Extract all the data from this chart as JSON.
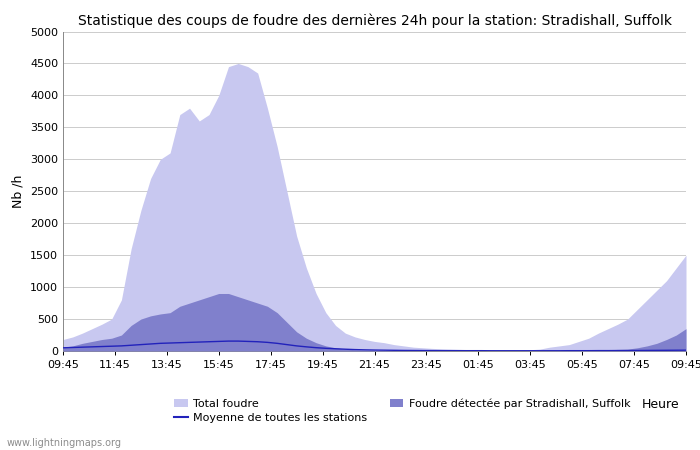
{
  "title": "Statistique des coups de foudre des dernières 24h pour la station: Stradishall, Suffolk",
  "xlabel": "Heure",
  "ylabel": "Nb /h",
  "ylim": [
    0,
    5000
  ],
  "yticks": [
    0,
    500,
    1000,
    1500,
    2000,
    2500,
    3000,
    3500,
    4000,
    4500,
    5000
  ],
  "x_labels": [
    "09:45",
    "11:45",
    "13:45",
    "15:45",
    "17:45",
    "19:45",
    "21:45",
    "23:45",
    "01:45",
    "03:45",
    "05:45",
    "07:45",
    "09:45"
  ],
  "color_total": "#c8c8f0",
  "color_detected": "#8080cc",
  "color_line": "#2222bb",
  "watermark": "www.lightningmaps.org",
  "legend_total": "Total foudre",
  "legend_avg": "Moyenne de toutes les stations",
  "legend_detected": "Foudre détectée par Stradishall, Suffolk",
  "total_foudre": [
    180,
    220,
    280,
    350,
    420,
    500,
    800,
    1600,
    2200,
    2700,
    3000,
    3100,
    3700,
    3800,
    3600,
    3700,
    4000,
    4450,
    4500,
    4450,
    4350,
    3800,
    3200,
    2500,
    1800,
    1300,
    900,
    600,
    400,
    280,
    220,
    180,
    150,
    130,
    100,
    80,
    60,
    50,
    40,
    35,
    30,
    25,
    20,
    18,
    15,
    12,
    12,
    14,
    20,
    30,
    60,
    80,
    100,
    150,
    200,
    280,
    350,
    420,
    500,
    650,
    800,
    950,
    1100,
    1300,
    1500
  ],
  "detected_foudre": [
    60,
    80,
    120,
    150,
    180,
    200,
    250,
    400,
    500,
    550,
    580,
    600,
    700,
    750,
    800,
    850,
    900,
    900,
    850,
    800,
    750,
    700,
    600,
    450,
    300,
    200,
    130,
    80,
    50,
    30,
    20,
    15,
    10,
    8,
    6,
    5,
    4,
    4,
    3,
    3,
    2,
    2,
    2,
    2,
    2,
    2,
    2,
    2,
    3,
    4,
    5,
    7,
    8,
    10,
    12,
    15,
    20,
    25,
    30,
    50,
    80,
    120,
    180,
    250,
    350
  ],
  "avg_line": [
    50,
    55,
    60,
    65,
    70,
    75,
    80,
    90,
    100,
    110,
    120,
    125,
    130,
    135,
    140,
    145,
    150,
    155,
    155,
    150,
    145,
    135,
    120,
    100,
    80,
    65,
    52,
    42,
    35,
    28,
    22,
    18,
    15,
    13,
    11,
    9,
    8,
    7,
    6,
    5,
    5,
    5,
    5,
    5,
    4,
    4,
    4,
    4,
    4,
    4,
    4,
    4,
    5,
    5,
    5,
    6,
    6,
    7,
    7,
    8,
    9,
    10,
    11,
    12,
    13
  ]
}
